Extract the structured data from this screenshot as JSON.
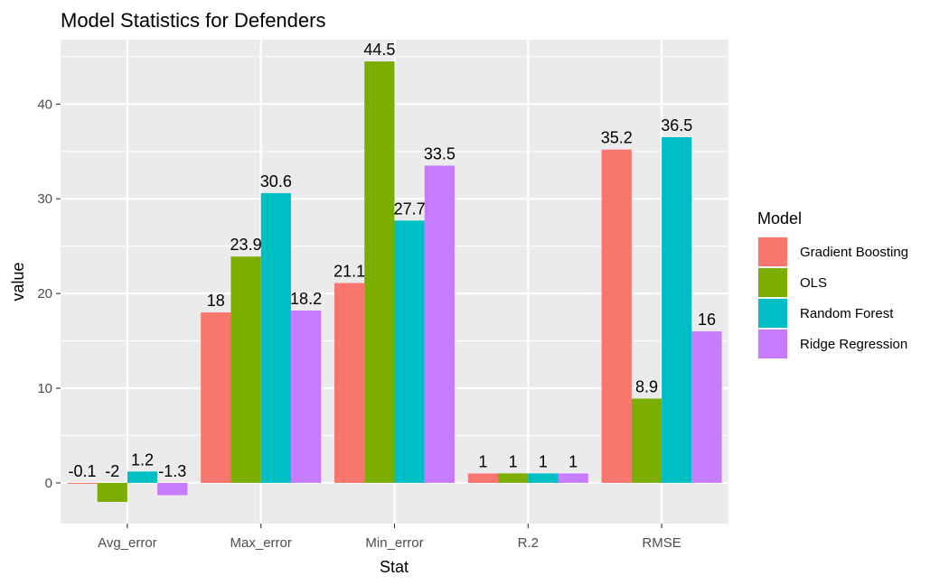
{
  "chart_data": {
    "type": "bar",
    "title": "Model Statistics for Defenders",
    "xlabel": "Stat",
    "ylabel": "value",
    "categories": [
      "Avg_error",
      "Max_error",
      "Min_error",
      "R.2",
      "RMSE"
    ],
    "series": [
      {
        "name": "Gradient Boosting",
        "color": "#F8766D",
        "values": [
          -0.1,
          18,
          21.1,
          1,
          35.2
        ],
        "labels": [
          "-0.1",
          "18",
          "21.1",
          "1",
          "35.2"
        ]
      },
      {
        "name": "OLS",
        "color": "#7CAE00",
        "values": [
          -2,
          23.9,
          44.5,
          1,
          8.9
        ],
        "labels": [
          "-2",
          "23.9",
          "44.5",
          "1",
          "8.9"
        ]
      },
      {
        "name": "Random Forest",
        "color": "#00BFC4",
        "values": [
          1.2,
          30.6,
          27.7,
          1,
          36.5
        ],
        "labels": [
          "1.2",
          "30.6",
          "27.7",
          "1",
          "36.5"
        ]
      },
      {
        "name": "Ridge Regression",
        "color": "#C77CFF",
        "values": [
          -1.3,
          18.2,
          33.5,
          1,
          16
        ],
        "labels": [
          "-1.3",
          "18.2",
          "33.5",
          "1",
          "16"
        ]
      }
    ],
    "ylim": [
      -4.3,
      46.8
    ],
    "yticks": [
      0,
      10,
      20,
      30,
      40
    ],
    "grid": true,
    "legend_title": "Model",
    "legend_position": "right",
    "panel_color": "#EBEBEB"
  }
}
